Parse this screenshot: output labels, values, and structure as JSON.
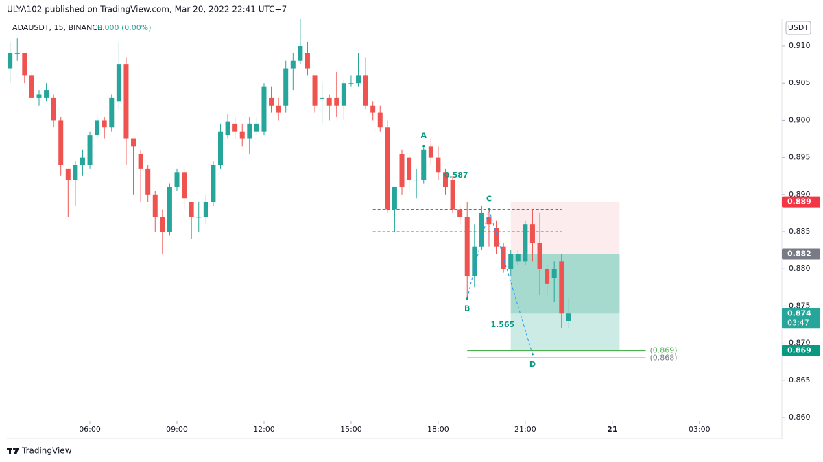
{
  "chart_data": {
    "type": "candlestick",
    "header": "ULYA102 published on TradingView.com, Mar 20, 2022 22:41 UTC+7",
    "symbol": "ADAUSDT, 15, BINANCE",
    "change": "0.000 (0.00%)",
    "currency": "USDT",
    "footer": "TradingView",
    "up_color": "#26a69a",
    "down_color": "#ef5350",
    "x": [
      3.25,
      3.5,
      3.75,
      4,
      4.25,
      4.5,
      4.75,
      5,
      5.25,
      5.5,
      5.75,
      6,
      6.25,
      6.5,
      6.75,
      7,
      7.25,
      7.5,
      7.75,
      8,
      8.25,
      8.5,
      8.75,
      9,
      9.25,
      9.5,
      9.75,
      10,
      10.25,
      10.5,
      10.75,
      11,
      11.25,
      11.5,
      11.75,
      12,
      12.25,
      12.5,
      12.75,
      13,
      13.25,
      13.5,
      13.75,
      14,
      14.25,
      14.5,
      14.75,
      15,
      15.25,
      15.5,
      15.75,
      16,
      16.25,
      16.5,
      16.75,
      17,
      17.25,
      17.5,
      17.75,
      18,
      18.25,
      18.5,
      18.75,
      19,
      19.25,
      19.5,
      19.75,
      20,
      20.25,
      20.5,
      20.75,
      21,
      21.25,
      21.5,
      21.75,
      22,
      22.25,
      22.5
    ],
    "open": [
      0.907,
      0.909,
      0.909,
      0.906,
      0.903,
      0.903,
      0.903,
      0.9,
      0.8935,
      0.892,
      0.894,
      0.894,
      0.898,
      0.9,
      0.899,
      0.9025,
      0.9075,
      0.8975,
      0.8955,
      0.8935,
      0.89,
      0.887,
      0.885,
      0.891,
      0.893,
      0.889,
      0.887,
      0.887,
      0.889,
      0.894,
      0.898,
      0.8995,
      0.8985,
      0.8975,
      0.8985,
      0.8985,
      0.903,
      0.902,
      0.902,
      0.907,
      0.908,
      0.909,
      0.906,
      0.903,
      0.903,
      0.903,
      0.902,
      0.905,
      0.905,
      0.906,
      0.902,
      0.901,
      0.899,
      0.888,
      0.8955,
      0.895,
      0.892,
      0.892,
      0.8965,
      0.895,
      0.893,
      0.892,
      0.888,
      0.887,
      0.879,
      0.883,
      0.887,
      0.8855,
      0.883,
      0.88,
      0.881,
      0.881,
      0.886,
      0.8835,
      0.88,
      0.8788,
      0.881,
      0.873
    ],
    "high": [
      0.9105,
      0.911,
      0.909,
      0.9065,
      0.904,
      0.905,
      0.9035,
      0.9005,
      0.8935,
      0.8945,
      0.896,
      0.8985,
      0.9005,
      0.9005,
      0.9035,
      0.9105,
      0.9085,
      0.8975,
      0.896,
      0.894,
      0.8905,
      0.888,
      0.8915,
      0.8935,
      0.8935,
      0.889,
      0.889,
      0.89,
      0.8945,
      0.8995,
      0.9008,
      0.9005,
      0.8995,
      0.9005,
      0.9005,
      0.905,
      0.9045,
      0.903,
      0.908,
      0.909,
      0.9136,
      0.9105,
      0.906,
      0.905,
      0.9035,
      0.9065,
      0.9055,
      0.906,
      0.909,
      0.9085,
      0.9025,
      0.902,
      0.9,
      0.891,
      0.896,
      0.8955,
      0.8935,
      0.8965,
      0.8975,
      0.8965,
      0.8935,
      0.8925,
      0.8885,
      0.889,
      0.886,
      0.8885,
      0.888,
      0.8865,
      0.8835,
      0.8825,
      0.8825,
      0.8865,
      0.888,
      0.8875,
      0.8805,
      0.881,
      0.882,
      0.876
    ],
    "low": [
      0.905,
      0.908,
      0.905,
      0.903,
      0.902,
      0.9025,
      0.899,
      0.8925,
      0.887,
      0.8885,
      0.8925,
      0.8935,
      0.8975,
      0.8975,
      0.8985,
      0.9015,
      0.894,
      0.89,
      0.889,
      0.889,
      0.885,
      0.882,
      0.8845,
      0.8905,
      0.888,
      0.884,
      0.885,
      0.886,
      0.8885,
      0.8935,
      0.8975,
      0.8975,
      0.8965,
      0.8955,
      0.898,
      0.898,
      0.901,
      0.9,
      0.901,
      0.904,
      0.9075,
      0.906,
      0.901,
      0.8995,
      0.9,
      0.9005,
      0.9,
      0.9045,
      0.9045,
      0.9015,
      0.9,
      0.8985,
      0.8875,
      0.885,
      0.89,
      0.8905,
      0.8895,
      0.8915,
      0.894,
      0.892,
      0.89,
      0.8875,
      0.886,
      0.876,
      0.8775,
      0.8825,
      0.883,
      0.882,
      0.8795,
      0.879,
      0.8805,
      0.8805,
      0.881,
      0.8765,
      0.8765,
      0.8755,
      0.872,
      0.872
    ],
    "close": [
      0.909,
      0.909,
      0.906,
      0.903,
      0.9035,
      0.904,
      0.9,
      0.894,
      0.892,
      0.894,
      0.895,
      0.898,
      0.9,
      0.899,
      0.903,
      0.9075,
      0.8975,
      0.8965,
      0.8935,
      0.89,
      0.887,
      0.885,
      0.891,
      0.893,
      0.8895,
      0.887,
      0.887,
      0.889,
      0.894,
      0.8985,
      0.8998,
      0.8985,
      0.8975,
      0.8995,
      0.8995,
      0.9045,
      0.902,
      0.901,
      0.907,
      0.908,
      0.91,
      0.907,
      0.902,
      0.903,
      0.902,
      0.902,
      0.905,
      0.905,
      0.906,
      0.902,
      0.901,
      0.899,
      0.888,
      0.891,
      0.891,
      0.892,
      0.892,
      0.896,
      0.895,
      0.893,
      0.891,
      0.888,
      0.887,
      0.879,
      0.883,
      0.8875,
      0.886,
      0.883,
      0.88,
      0.882,
      0.882,
      0.886,
      0.8835,
      0.88,
      0.878,
      0.88,
      0.874,
      0.874
    ],
    "xlim": [
      3.14,
      29.84
    ],
    "xticks": [
      {
        "value": 6,
        "label": "06:00"
      },
      {
        "value": 9,
        "label": "09:00"
      },
      {
        "value": 12,
        "label": "12:00"
      },
      {
        "value": 15,
        "label": "15:00"
      },
      {
        "value": 18,
        "label": "18:00"
      },
      {
        "value": 21,
        "label": "21:00"
      },
      {
        "value": 24,
        "label": "21"
      },
      {
        "value": 27,
        "label": "03:00"
      }
    ],
    "ylim": [
      0.85954,
      0.9136
    ],
    "yticks": [
      {
        "value": 0.86,
        "label": "0.860"
      },
      0.865,
      {
        "value": 0.87,
        "label": "0.870"
      },
      0.875,
      {
        "value": 0.88,
        "label": "0.880"
      },
      0.885,
      {
        "value": 0.89,
        "label": "0.890"
      },
      0.895,
      {
        "value": 0.9,
        "label": "0.900"
      },
      0.905,
      {
        "value": 0.91,
        "label": "0.910"
      }
    ],
    "price_badges": [
      {
        "value": 0.889,
        "color": "#f23645"
      },
      {
        "value": 0.882,
        "color": "#787b86"
      },
      {
        "value": 0.874,
        "color": "#26a69a",
        "countdown": "03:47"
      },
      {
        "value": 0.869,
        "color": "#089981"
      }
    ],
    "position": {
      "stop": 0.889,
      "entry": 0.882,
      "current": 0.874,
      "target": 0.869,
      "x": [
        20.5,
        24.25
      ],
      "stop_color": "#fdecee",
      "target_color": "#cdebe5",
      "open_color": "#a6dacf"
    },
    "dashed_levels": {
      "values": [
        0.888,
        0.885
      ],
      "x": [
        15.75,
        22.25
      ],
      "color": "#f23645"
    },
    "levels": [
      {
        "value": 0.869,
        "label": "(0.869)",
        "color": "#4caf50",
        "x": [
          19,
          25.15
        ]
      },
      {
        "value": 0.868,
        "label": "(0.868)",
        "color": "#787b86",
        "x": [
          19,
          25.15
        ]
      }
    ],
    "pattern": {
      "color": "#089981",
      "line_color": "#2196f3",
      "points": [
        {
          "label": "A",
          "x": 17.5,
          "y": 0.8965
        },
        {
          "label": "B",
          "x": 19,
          "y": 0.876
        },
        {
          "label": "C",
          "x": 19.75,
          "y": 0.888
        },
        {
          "label": "D",
          "x": 21.25,
          "y": 0.8685
        }
      ],
      "ratios": [
        {
          "value": 0.587,
          "x": 18.62,
          "y": 0.89256
        },
        {
          "value": 1.565,
          "x": 20.22,
          "y": 0.87245
        }
      ]
    }
  }
}
